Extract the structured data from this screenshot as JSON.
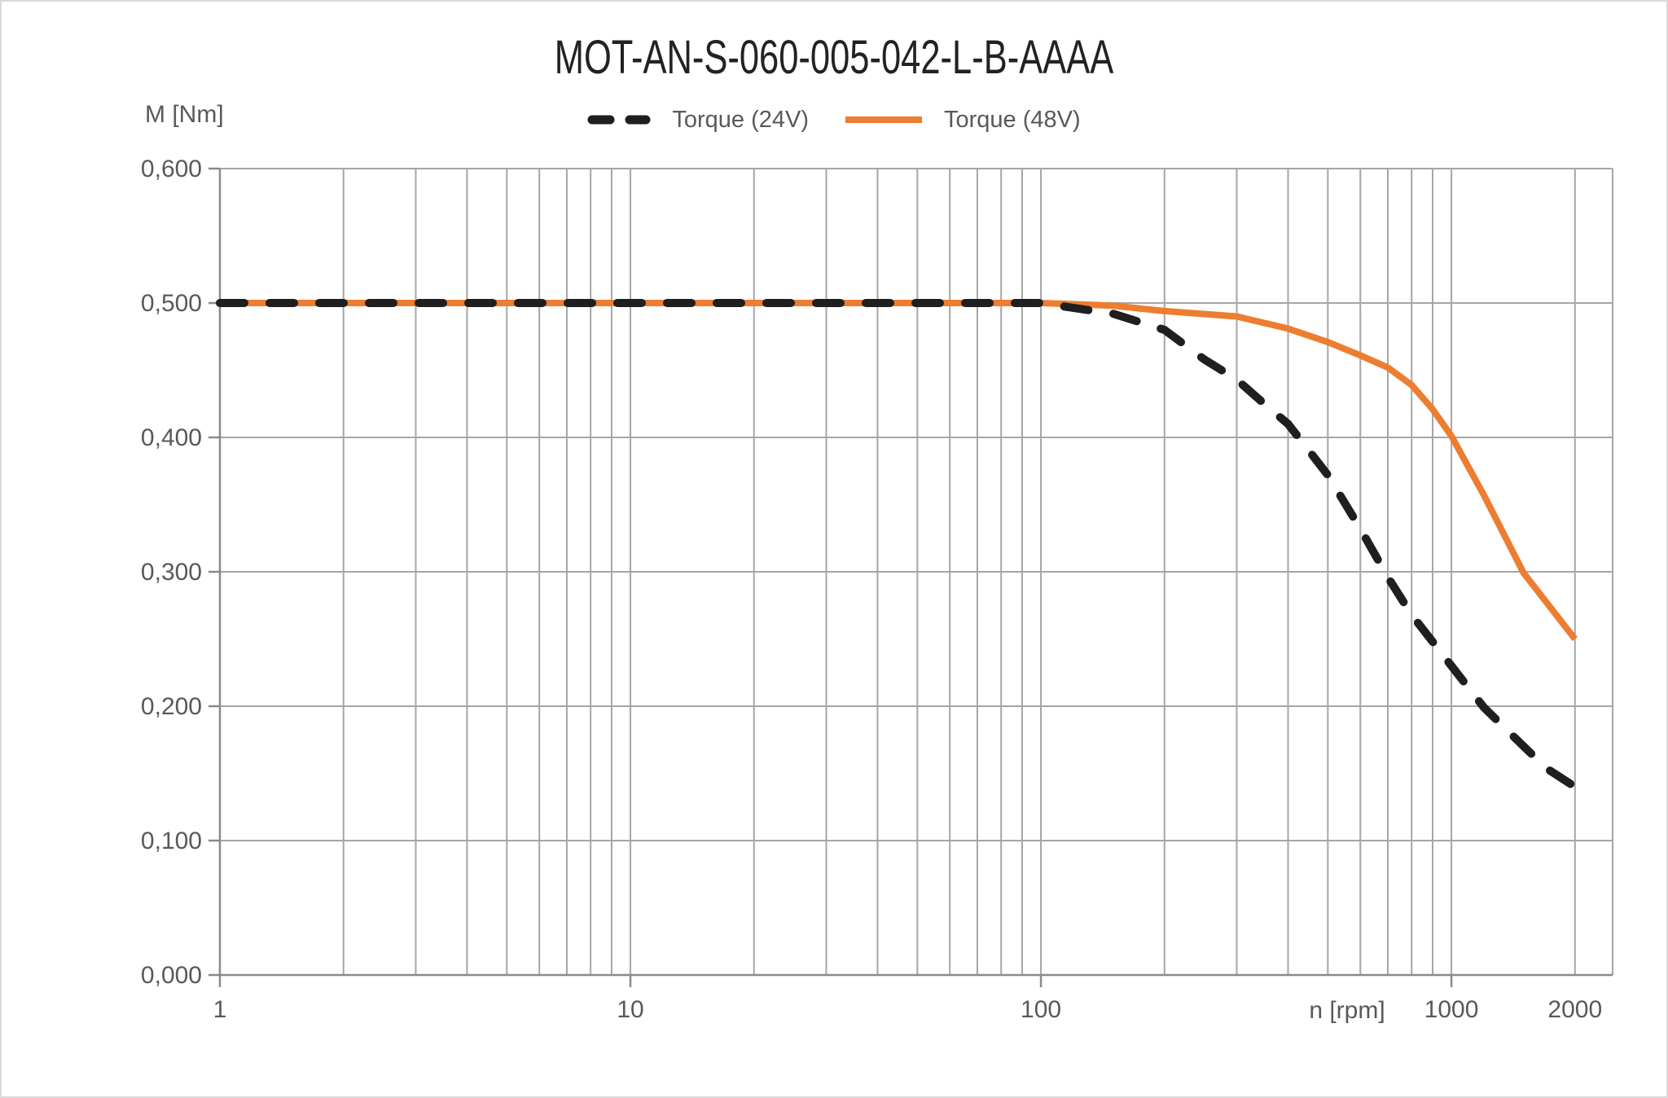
{
  "title": "MOT-AN-S-060-005-042-L-B-AAAA",
  "y_axis_label": "M [Nm]",
  "x_axis_label": "n [rpm]",
  "legend": [
    {
      "label": "Torque (24V)",
      "color": "#1f1f1f",
      "style": "dashed"
    },
    {
      "label": "Torque (48V)",
      "color": "#ED7D31",
      "style": "solid"
    }
  ],
  "chart_data": {
    "type": "line",
    "title": "MOT-AN-S-060-005-042-L-B-AAAA",
    "xlabel": "n [rpm]",
    "ylabel": "M [Nm]",
    "x_scale": "log",
    "xlim": [
      1,
      2470
    ],
    "ylim": [
      0,
      0.6
    ],
    "grid": true,
    "legend_position": "top-center",
    "y_ticks": [
      {
        "v": 0.0,
        "label": "0,000"
      },
      {
        "v": 0.1,
        "label": "0,100"
      },
      {
        "v": 0.2,
        "label": "0,200"
      },
      {
        "v": 0.3,
        "label": "0,300"
      },
      {
        "v": 0.4,
        "label": "0,400"
      },
      {
        "v": 0.5,
        "label": "0,500"
      },
      {
        "v": 0.6,
        "label": "0,600"
      }
    ],
    "x_ticks": [
      {
        "v": 1,
        "label": "1",
        "tick": true
      },
      {
        "v": 10,
        "label": "10",
        "tick": true
      },
      {
        "v": 100,
        "label": "100",
        "tick": true
      },
      {
        "v": 1000,
        "label": "1000",
        "tick": true
      },
      {
        "v": 2000,
        "label": "2000",
        "tick": false
      }
    ],
    "x_gridlines": [
      2,
      3,
      4,
      5,
      6,
      7,
      8,
      9,
      10,
      20,
      30,
      40,
      50,
      60,
      70,
      80,
      90,
      100,
      200,
      300,
      400,
      500,
      600,
      700,
      800,
      900,
      1000,
      2000
    ],
    "series": [
      {
        "name": "Torque (24V)",
        "color": "#1f1f1f",
        "style": "dashed",
        "points": [
          [
            1,
            0.5
          ],
          [
            2,
            0.5
          ],
          [
            5,
            0.5
          ],
          [
            10,
            0.5
          ],
          [
            20,
            0.5
          ],
          [
            50,
            0.5
          ],
          [
            100,
            0.5
          ],
          [
            150,
            0.492
          ],
          [
            200,
            0.48
          ],
          [
            250,
            0.458
          ],
          [
            300,
            0.443
          ],
          [
            350,
            0.425
          ],
          [
            400,
            0.41
          ],
          [
            450,
            0.39
          ],
          [
            500,
            0.372
          ],
          [
            600,
            0.332
          ],
          [
            700,
            0.296
          ],
          [
            800,
            0.268
          ],
          [
            900,
            0.248
          ],
          [
            1000,
            0.23
          ],
          [
            1200,
            0.199
          ],
          [
            1400,
            0.179
          ],
          [
            1700,
            0.154
          ],
          [
            2000,
            0.14
          ]
        ]
      },
      {
        "name": "Torque (48V)",
        "color": "#ED7D31",
        "style": "solid",
        "points": [
          [
            1,
            0.5
          ],
          [
            2,
            0.5
          ],
          [
            5,
            0.5
          ],
          [
            10,
            0.5
          ],
          [
            20,
            0.5
          ],
          [
            50,
            0.5
          ],
          [
            100,
            0.5
          ],
          [
            150,
            0.498
          ],
          [
            200,
            0.494
          ],
          [
            300,
            0.49
          ],
          [
            400,
            0.481
          ],
          [
            500,
            0.471
          ],
          [
            600,
            0.461
          ],
          [
            700,
            0.452
          ],
          [
            800,
            0.439
          ],
          [
            900,
            0.421
          ],
          [
            1000,
            0.401
          ],
          [
            1200,
            0.357
          ],
          [
            1500,
            0.299
          ],
          [
            2000,
            0.25
          ]
        ]
      }
    ]
  }
}
